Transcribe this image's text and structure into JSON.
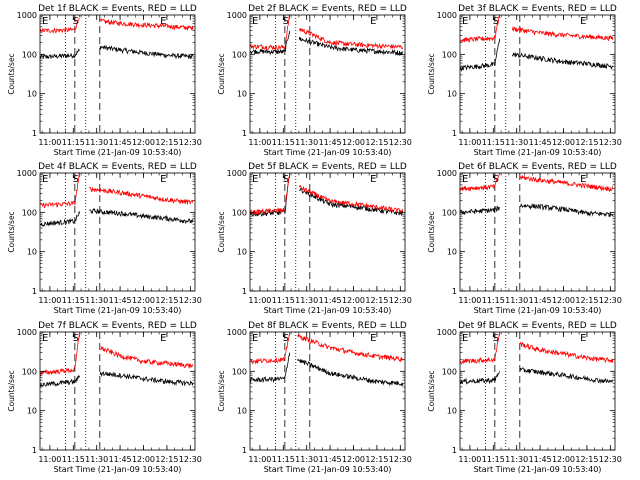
{
  "figure": {
    "ylabel": "Counts/sec",
    "xlabel": "Start Time (21-Jan-09 10:53:40)",
    "x_tick_labels": [
      "11:00",
      "11:15",
      "11:30",
      "11:45",
      "12:00",
      "12:15",
      "12:30"
    ],
    "y_tick_labels": [
      "1",
      "10",
      "100",
      "1000"
    ],
    "markers": {
      "start": "S",
      "end": "E",
      "corner": "E"
    },
    "colors": {
      "events": "#000000",
      "lld": "#ff0000",
      "axes": "#000000",
      "background": "#ffffff"
    }
  },
  "chart_data": [
    {
      "type": "line",
      "title": "Det 1f BLACK = Events, RED = LLD",
      "xlabel": "Start Time (21-Jan-09 10:53:40)",
      "ylabel": "Counts/sec",
      "x_range": [
        "10:53:40",
        "12:33:00"
      ],
      "ylim": [
        1,
        1000
      ],
      "y_scale": "log",
      "grid": false,
      "dotted_lines": [
        "11:10",
        "11:23"
      ],
      "dashed_lines": [
        "11:16",
        "11:32"
      ],
      "gap": [
        "11:19",
        "11:32"
      ],
      "series": [
        {
          "name": "Events",
          "color": "#000000",
          "points": [
            [
              "10:53:40",
              85
            ],
            [
              "11:16:00",
              95
            ],
            [
              "11:19:00",
              130
            ],
            [
              "11:32:00",
              155
            ],
            [
              "11:45:00",
              130
            ],
            [
              "12:00:00",
              110
            ],
            [
              "12:15:00",
              95
            ],
            [
              "12:30:00",
              88
            ]
          ]
        },
        {
          "name": "LLD",
          "color": "#ff0000",
          "points": [
            [
              "10:53:40",
              400
            ],
            [
              "11:16:00",
              420
            ],
            [
              "11:19:00",
              1000
            ],
            [
              "11:32:00",
              700
            ],
            [
              "11:45:00",
              620
            ],
            [
              "12:00:00",
              560
            ],
            [
              "12:15:00",
              520
            ],
            [
              "12:30:00",
              470
            ]
          ]
        }
      ]
    },
    {
      "type": "line",
      "title": "Det 2f BLACK = Events, RED = LLD",
      "xlabel": "Start Time (21-Jan-09 10:53:40)",
      "ylabel": "Counts/sec",
      "x_range": [
        "10:53:40",
        "12:33:00"
      ],
      "ylim": [
        1,
        1000
      ],
      "y_scale": "log",
      "grid": false,
      "dotted_lines": [
        "11:10",
        "11:23"
      ],
      "dashed_lines": [
        "11:16",
        "11:32"
      ],
      "gap": [
        "11:19",
        "11:25"
      ],
      "series": [
        {
          "name": "Events",
          "color": "#000000",
          "points": [
            [
              "10:53:40",
              120
            ],
            [
              "11:16:00",
              115
            ],
            [
              "11:19:00",
              400
            ],
            [
              "11:25:00",
              250
            ],
            [
              "11:45:00",
              150
            ],
            [
              "12:00:00",
              130
            ],
            [
              "12:15:00",
              120
            ],
            [
              "12:30:00",
              110
            ]
          ]
        },
        {
          "name": "LLD",
          "color": "#ff0000",
          "points": [
            [
              "10:53:40",
              160
            ],
            [
              "11:16:00",
              150
            ],
            [
              "11:19:00",
              1000
            ],
            [
              "11:25:00",
              450
            ],
            [
              "11:45:00",
              200
            ],
            [
              "12:00:00",
              180
            ],
            [
              "12:15:00",
              165
            ],
            [
              "12:30:00",
              155
            ]
          ]
        }
      ]
    },
    {
      "type": "line",
      "title": "Det 3f BLACK = Events, RED = LLD",
      "xlabel": "Start Time (21-Jan-09 10:53:40)",
      "ylabel": "Counts/sec",
      "x_range": [
        "10:53:40",
        "12:33:00"
      ],
      "ylim": [
        1,
        1000
      ],
      "y_scale": "log",
      "grid": false,
      "dotted_lines": [
        "11:10",
        "11:23"
      ],
      "dashed_lines": [
        "11:16",
        "11:32"
      ],
      "gap": [
        "11:19",
        "11:27"
      ],
      "series": [
        {
          "name": "Events",
          "color": "#000000",
          "points": [
            [
              "10:53:40",
              45
            ],
            [
              "11:16:00",
              55
            ],
            [
              "11:19:00",
              250
            ],
            [
              "11:27:00",
              100
            ],
            [
              "11:45:00",
              80
            ],
            [
              "12:00:00",
              65
            ],
            [
              "12:15:00",
              58
            ],
            [
              "12:30:00",
              50
            ]
          ]
        },
        {
          "name": "LLD",
          "color": "#ff0000",
          "points": [
            [
              "10:53:40",
              230
            ],
            [
              "11:16:00",
              260
            ],
            [
              "11:19:00",
              1000
            ],
            [
              "11:27:00",
              450
            ],
            [
              "11:45:00",
              350
            ],
            [
              "12:00:00",
              310
            ],
            [
              "12:15:00",
              280
            ],
            [
              "12:30:00",
              260
            ]
          ]
        }
      ]
    },
    {
      "type": "line",
      "title": "Det 4f BLACK = Events, RED = LLD",
      "xlabel": "Start Time (21-Jan-09 10:53:40)",
      "ylabel": "Counts/sec",
      "x_range": [
        "10:53:40",
        "12:33:00"
      ],
      "ylim": [
        1,
        1000
      ],
      "y_scale": "log",
      "grid": false,
      "dotted_lines": [
        "11:10",
        "11:23"
      ],
      "dashed_lines": [
        "11:16",
        "11:32"
      ],
      "gap": [
        "11:19",
        "11:25"
      ],
      "series": [
        {
          "name": "Events",
          "color": "#000000",
          "points": [
            [
              "10:53:40",
              50
            ],
            [
              "11:16:00",
              60
            ],
            [
              "11:19:00",
              100
            ],
            [
              "11:25:00",
              110
            ],
            [
              "11:45:00",
              95
            ],
            [
              "12:00:00",
              80
            ],
            [
              "12:15:00",
              70
            ],
            [
              "12:30:00",
              60
            ]
          ]
        },
        {
          "name": "LLD",
          "color": "#ff0000",
          "points": [
            [
              "10:53:40",
              150
            ],
            [
              "11:16:00",
              170
            ],
            [
              "11:19:00",
              1000
            ],
            [
              "11:25:00",
              400
            ],
            [
              "11:45:00",
              320
            ],
            [
              "12:00:00",
              260
            ],
            [
              "12:15:00",
              210
            ],
            [
              "12:30:00",
              180
            ]
          ]
        }
      ]
    },
    {
      "type": "line",
      "title": "Det 5f BLACK = Events, RED = LLD",
      "xlabel": "Start Time (21-Jan-09 10:53:40)",
      "ylabel": "Counts/sec",
      "x_range": [
        "10:53:40",
        "12:33:00"
      ],
      "ylim": [
        1,
        1000
      ],
      "y_scale": "log",
      "grid": false,
      "dotted_lines": [
        "11:10",
        "11:23"
      ],
      "dashed_lines": [
        "11:16",
        "11:32"
      ],
      "gap": [
        "11:19",
        "11:25"
      ],
      "series": [
        {
          "name": "Events",
          "color": "#000000",
          "points": [
            [
              "10:53:40",
              90
            ],
            [
              "11:16:00",
              100
            ],
            [
              "11:19:00",
              1000
            ],
            [
              "11:25:00",
              400
            ],
            [
              "11:45:00",
              160
            ],
            [
              "12:00:00",
              140
            ],
            [
              "12:15:00",
              115
            ],
            [
              "12:30:00",
              95
            ]
          ]
        },
        {
          "name": "LLD",
          "color": "#ff0000",
          "points": [
            [
              "10:53:40",
              100
            ],
            [
              "11:16:00",
              115
            ],
            [
              "11:19:00",
              1000
            ],
            [
              "11:25:00",
              450
            ],
            [
              "11:45:00",
              190
            ],
            [
              "12:00:00",
              165
            ],
            [
              "12:15:00",
              135
            ],
            [
              "12:30:00",
              110
            ]
          ]
        }
      ]
    },
    {
      "type": "line",
      "title": "Det 6f BLACK = Events, RED = LLD",
      "xlabel": "Start Time (21-Jan-09 10:53:40)",
      "ylabel": "Counts/sec",
      "x_range": [
        "10:53:40",
        "12:33:00"
      ],
      "ylim": [
        1,
        1000
      ],
      "y_scale": "log",
      "grid": false,
      "dotted_lines": [
        "11:10",
        "11:23"
      ],
      "dashed_lines": [
        "11:16",
        "11:32"
      ],
      "gap": [
        "11:19",
        "11:32"
      ],
      "series": [
        {
          "name": "Events",
          "color": "#000000",
          "points": [
            [
              "10:53:40",
              100
            ],
            [
              "11:16:00",
              115
            ],
            [
              "11:19:00",
              130
            ],
            [
              "11:32:00",
              150
            ],
            [
              "11:45:00",
              140
            ],
            [
              "12:00:00",
              120
            ],
            [
              "12:15:00",
              95
            ],
            [
              "12:30:00",
              90
            ]
          ]
        },
        {
          "name": "LLD",
          "color": "#ff0000",
          "points": [
            [
              "10:53:40",
              400
            ],
            [
              "11:16:00",
              450
            ],
            [
              "11:19:00",
              1000
            ],
            [
              "11:32:00",
              780
            ],
            [
              "11:45:00",
              660
            ],
            [
              "12:00:00",
              560
            ],
            [
              "12:15:00",
              470
            ],
            [
              "12:30:00",
              400
            ]
          ]
        }
      ]
    },
    {
      "type": "line",
      "title": "Det 7f BLACK = Events, RED = LLD",
      "xlabel": "Start Time (21-Jan-09 10:53:40)",
      "ylabel": "Counts/sec",
      "x_range": [
        "10:53:40",
        "12:33:00"
      ],
      "ylim": [
        1,
        1000
      ],
      "y_scale": "log",
      "grid": false,
      "dotted_lines": [
        "11:10",
        "11:23"
      ],
      "dashed_lines": [
        "11:16",
        "11:32"
      ],
      "gap": [
        "11:19",
        "11:32"
      ],
      "series": [
        {
          "name": "Events",
          "color": "#000000",
          "points": [
            [
              "10:53:40",
              45
            ],
            [
              "11:16:00",
              55
            ],
            [
              "11:19:00",
              75
            ],
            [
              "11:32:00",
              90
            ],
            [
              "11:45:00",
              80
            ],
            [
              "12:00:00",
              65
            ],
            [
              "12:15:00",
              55
            ],
            [
              "12:30:00",
              50
            ]
          ]
        },
        {
          "name": "LLD",
          "color": "#ff0000",
          "points": [
            [
              "10:53:40",
              90
            ],
            [
              "11:16:00",
              110
            ],
            [
              "11:19:00",
              1000
            ],
            [
              "11:32:00",
              400
            ],
            [
              "11:45:00",
              250
            ],
            [
              "12:00:00",
              180
            ],
            [
              "12:15:00",
              160
            ],
            [
              "12:30:00",
              140
            ]
          ]
        }
      ]
    },
    {
      "type": "line",
      "title": "Det 8f BLACK = Events, RED = LLD",
      "xlabel": "Start Time (21-Jan-09 10:53:40)",
      "ylabel": "Counts/sec",
      "x_range": [
        "10:53:40",
        "12:33:00"
      ],
      "ylim": [
        1,
        1000
      ],
      "y_scale": "log",
      "grid": false,
      "dotted_lines": [
        "11:10",
        "11:23"
      ],
      "dashed_lines": [
        "11:16",
        "11:32"
      ],
      "gap": [
        "11:19",
        "11:24"
      ],
      "series": [
        {
          "name": "Events",
          "color": "#000000",
          "points": [
            [
              "10:53:40",
              60
            ],
            [
              "11:16:00",
              65
            ],
            [
              "11:19:00",
              300
            ],
            [
              "11:24:00",
              200
            ],
            [
              "11:45:00",
              90
            ],
            [
              "12:00:00",
              70
            ],
            [
              "12:15:00",
              55
            ],
            [
              "12:30:00",
              50
            ]
          ]
        },
        {
          "name": "LLD",
          "color": "#ff0000",
          "points": [
            [
              "10:53:40",
              180
            ],
            [
              "11:16:00",
              200
            ],
            [
              "11:19:00",
              1000
            ],
            [
              "11:24:00",
              800
            ],
            [
              "11:45:00",
              400
            ],
            [
              "12:00:00",
              300
            ],
            [
              "12:15:00",
              240
            ],
            [
              "12:30:00",
              210
            ]
          ]
        }
      ]
    },
    {
      "type": "line",
      "title": "Det 9f BLACK = Events, RED = LLD",
      "xlabel": "Start Time (21-Jan-09 10:53:40)",
      "ylabel": "Counts/sec",
      "x_range": [
        "10:53:40",
        "12:33:00"
      ],
      "ylim": [
        1,
        1000
      ],
      "y_scale": "log",
      "grid": false,
      "dotted_lines": [
        "11:10",
        "11:23"
      ],
      "dashed_lines": [
        "11:16",
        "11:32"
      ],
      "gap": [
        "11:19",
        "11:32"
      ],
      "series": [
        {
          "name": "Events",
          "color": "#000000",
          "points": [
            [
              "10:53:40",
              55
            ],
            [
              "11:16:00",
              60
            ],
            [
              "11:19:00",
              100
            ],
            [
              "11:32:00",
              110
            ],
            [
              "11:45:00",
              95
            ],
            [
              "12:00:00",
              80
            ],
            [
              "12:15:00",
              65
            ],
            [
              "12:30:00",
              55
            ]
          ]
        },
        {
          "name": "LLD",
          "color": "#ff0000",
          "points": [
            [
              "10:53:40",
              180
            ],
            [
              "11:16:00",
              200
            ],
            [
              "11:19:00",
              1000
            ],
            [
              "11:32:00",
              500
            ],
            [
              "11:45:00",
              350
            ],
            [
              "12:00:00",
              280
            ],
            [
              "12:15:00",
              220
            ],
            [
              "12:30:00",
              190
            ]
          ]
        }
      ]
    }
  ]
}
